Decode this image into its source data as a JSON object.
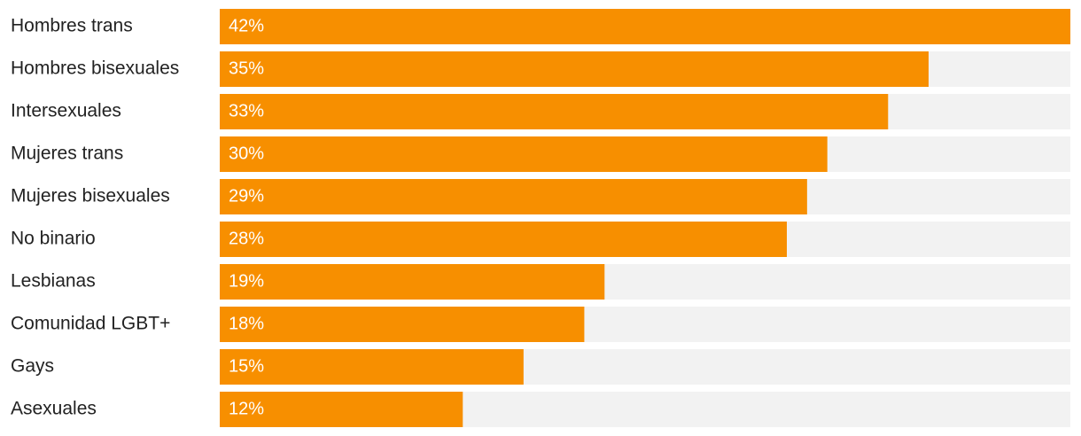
{
  "chart_data": {
    "type": "bar",
    "categories": [
      "Hombres trans",
      "Hombres bisexuales",
      "Intersexuales",
      "Mujeres trans",
      "Mujeres bisexuales",
      "No binario",
      "Lesbianas",
      "Comunidad LGBT+",
      "Gays",
      "Asexuales"
    ],
    "values": [
      42,
      35,
      33,
      30,
      29,
      28,
      19,
      18,
      15,
      12
    ],
    "value_labels": [
      "42%",
      "35%",
      "33%",
      "30%",
      "29%",
      "28%",
      "19%",
      "18%",
      "15%",
      "12%"
    ],
    "color": "#f78f00",
    "track_color": "#f2f2f2",
    "xlim": [
      0,
      42
    ]
  }
}
